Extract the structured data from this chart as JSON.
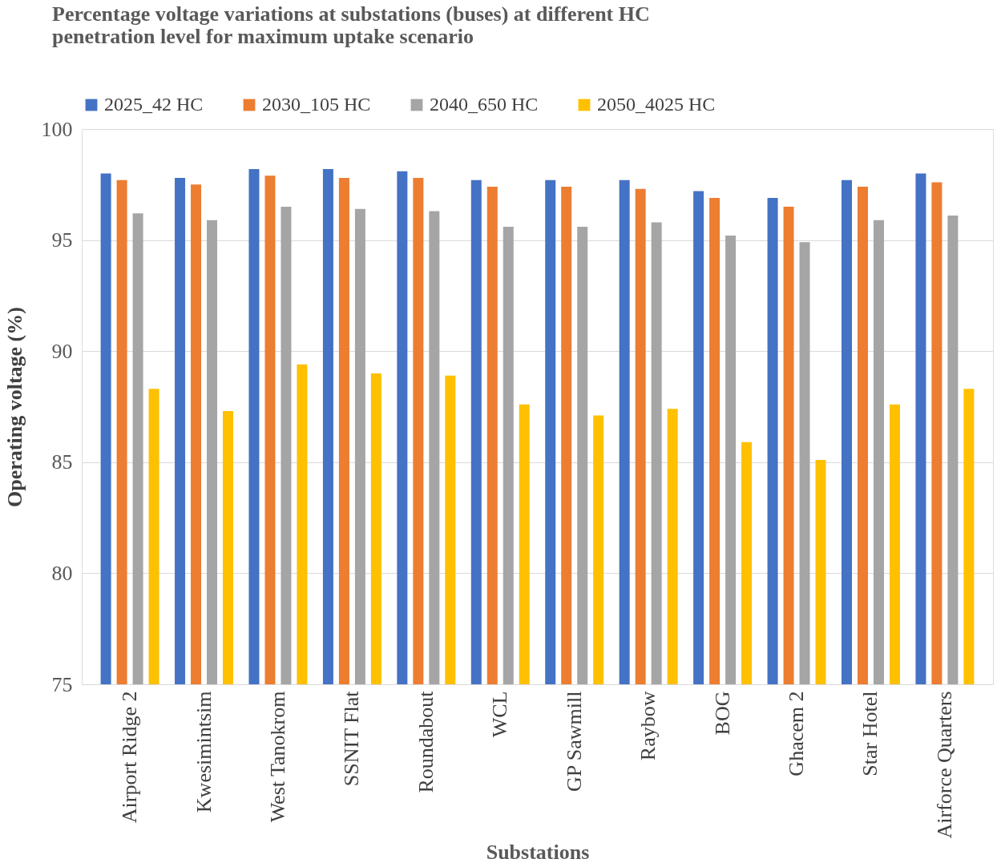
{
  "chart_data": {
    "type": "bar",
    "title": [
      "Percentage voltage variations at substations (buses) at different HC",
      "penetration level for maximum uptake scenario"
    ],
    "xlabel": "Substations",
    "ylabel": "Operating voltage (%)",
    "categories": [
      "Airport Ridge 2",
      "Kwesimintsim",
      "West Tanokrom",
      "SSNIT Flat",
      "Roundabout",
      "WCL",
      "GP Sawmill",
      "Raybow",
      "BOG",
      "Ghacem 2",
      "Star Hotel",
      "Airforce Quarters"
    ],
    "series": [
      {
        "name": "2025_42 HC",
        "color": "#4472c4",
        "values": [
          98.0,
          97.8,
          98.2,
          98.2,
          98.1,
          97.7,
          97.7,
          97.7,
          97.2,
          96.9,
          97.7,
          98.0
        ]
      },
      {
        "name": "2030_105 HC",
        "color": "#ed7d31",
        "values": [
          97.7,
          97.5,
          97.9,
          97.8,
          97.8,
          97.4,
          97.4,
          97.3,
          96.9,
          96.5,
          97.4,
          97.6
        ]
      },
      {
        "name": "2040_650 HC",
        "color": "#a5a5a5",
        "values": [
          96.2,
          95.9,
          96.5,
          96.4,
          96.3,
          95.6,
          95.6,
          95.8,
          95.2,
          94.9,
          95.9,
          96.1
        ]
      },
      {
        "name": "2050_4025 HC",
        "color": "#ffc000",
        "values": [
          88.3,
          87.3,
          89.4,
          89.0,
          88.9,
          87.6,
          87.1,
          87.4,
          85.9,
          85.1,
          87.6,
          88.3
        ]
      }
    ],
    "ylim": [
      75,
      100
    ],
    "yticks": [
      75,
      80,
      85,
      90,
      95,
      100
    ],
    "grid": "y",
    "legend": "top"
  }
}
